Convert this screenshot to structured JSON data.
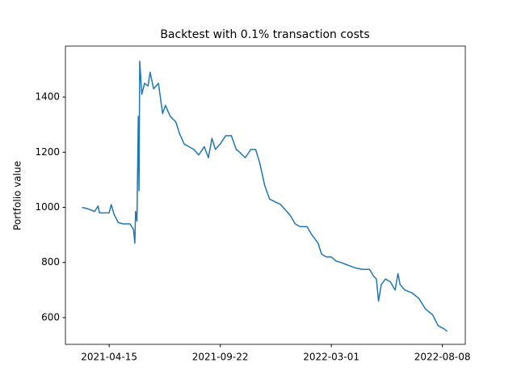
{
  "chart_data": {
    "type": "line",
    "title": "Backtest with 0.1% transaction costs",
    "y_label": "Portfolio value",
    "x": [
      "2021-03-07",
      "2021-03-15",
      "2021-03-25",
      "2021-03-30",
      "2021-04-01",
      "2021-04-15",
      "2021-04-18",
      "2021-04-22",
      "2021-04-28",
      "2021-05-05",
      "2021-05-15",
      "2021-05-20",
      "2021-05-22",
      "2021-05-23",
      "2021-05-25",
      "2021-05-27",
      "2021-05-28",
      "2021-05-29",
      "2021-06-01",
      "2021-06-05",
      "2021-06-10",
      "2021-06-13",
      "2021-06-18",
      "2021-06-25",
      "2021-07-01",
      "2021-07-05",
      "2021-07-12",
      "2021-07-20",
      "2021-07-25",
      "2021-08-01",
      "2021-08-08",
      "2021-08-15",
      "2021-08-22",
      "2021-08-30",
      "2021-09-05",
      "2021-09-10",
      "2021-09-15",
      "2021-09-22",
      "2021-09-30",
      "2021-10-08",
      "2021-10-15",
      "2021-10-20",
      "2021-10-28",
      "2021-11-05",
      "2021-11-12",
      "2021-11-18",
      "2021-11-25",
      "2021-12-02",
      "2021-12-10",
      "2021-12-18",
      "2021-12-25",
      "2022-01-01",
      "2022-01-08",
      "2022-01-15",
      "2022-01-25",
      "2022-02-01",
      "2022-02-10",
      "2022-02-15",
      "2022-02-22",
      "2022-03-01",
      "2022-03-08",
      "2022-03-15",
      "2022-03-25",
      "2022-04-05",
      "2022-04-15",
      "2022-04-25",
      "2022-05-01",
      "2022-05-05",
      "2022-05-08",
      "2022-05-12",
      "2022-05-18",
      "2022-05-25",
      "2022-06-01",
      "2022-06-05",
      "2022-06-08",
      "2022-06-15",
      "2022-06-25",
      "2022-07-05",
      "2022-07-15",
      "2022-07-25",
      "2022-08-02",
      "2022-08-10",
      "2022-08-15"
    ],
    "series": [
      {
        "name": "Portfolio value",
        "color": "#1f77b4",
        "values": [
          1000,
          995,
          985,
          1005,
          980,
          980,
          1010,
          975,
          945,
          940,
          940,
          920,
          870,
          985,
          950,
          1330,
          1060,
          1530,
          1410,
          1450,
          1440,
          1490,
          1430,
          1450,
          1340,
          1370,
          1330,
          1310,
          1270,
          1230,
          1220,
          1210,
          1190,
          1220,
          1180,
          1250,
          1210,
          1230,
          1260,
          1260,
          1210,
          1200,
          1180,
          1210,
          1210,
          1160,
          1080,
          1030,
          1020,
          1010,
          990,
          970,
          940,
          930,
          930,
          900,
          870,
          830,
          820,
          820,
          805,
          800,
          790,
          780,
          775,
          775,
          750,
          740,
          660,
          720,
          740,
          730,
          700,
          760,
          720,
          700,
          690,
          670,
          630,
          610,
          570,
          560,
          550
        ]
      }
    ],
    "xlim": [
      "2021-02-11",
      "2022-09-10"
    ],
    "xticks": [
      "2021-04-15",
      "2021-09-22",
      "2022-03-01",
      "2022-08-08"
    ],
    "ylim": [
      503,
      1585
    ],
    "yticks": [
      600,
      800,
      1000,
      1200,
      1400
    ]
  }
}
